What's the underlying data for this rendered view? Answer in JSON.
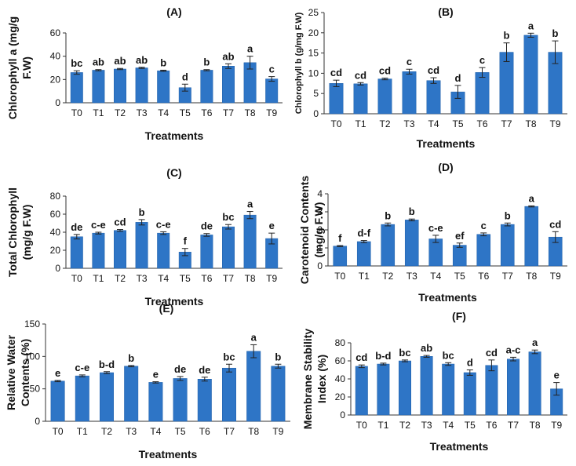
{
  "colors": {
    "bar": "#2e75c6",
    "bar_edge": "#1f5fa8",
    "axis": "#333333",
    "text": "#111111"
  },
  "chart_data": [
    {
      "panel": "(A)",
      "type": "bar",
      "ylabel_lines": [
        "Chlorophyll a (mg/g",
        "F.W)"
      ],
      "xlabel": "Treatments",
      "categories": [
        "T0",
        "T1",
        "T2",
        "T3",
        "T4",
        "T5",
        "T6",
        "T7",
        "T8",
        "T9"
      ],
      "values": [
        26,
        28,
        29,
        30,
        27.5,
        13,
        28,
        31.5,
        34.5,
        20.5
      ],
      "errors": [
        1.5,
        0.5,
        0.5,
        0.5,
        0.5,
        3,
        0.5,
        2,
        5.5,
        2
      ],
      "letters": [
        "bc",
        "ab",
        "ab",
        "ab",
        "b",
        "d",
        "b",
        "ab",
        "a",
        "c"
      ],
      "ylim": [
        0,
        60
      ],
      "yticks": [
        "0",
        "20",
        "40",
        "60"
      ]
    },
    {
      "panel": "(B)",
      "type": "bar",
      "ylabel_lines": [
        "Chlorophyll b (g/mg F.W)"
      ],
      "xlabel": "Treatments",
      "categories": [
        "T0",
        "T1",
        "T2",
        "T3",
        "T4",
        "T5",
        "T6",
        "T7",
        "T8",
        "T9"
      ],
      "values": [
        7.5,
        7.4,
        8.6,
        10.4,
        8.2,
        5.4,
        10.2,
        15.2,
        19.4,
        15.2
      ],
      "errors": [
        0.8,
        0.3,
        0.2,
        0.6,
        0.7,
        1.6,
        1.2,
        2.3,
        0.5,
        2.8
      ],
      "letters": [
        "cd",
        "cd",
        "cd",
        "c",
        "cd",
        "d",
        "c",
        "b",
        "a",
        "b"
      ],
      "ylim": [
        0,
        25
      ],
      "yticks": [
        "0",
        "5",
        "10",
        "15",
        "20",
        "25"
      ]
    },
    {
      "panel": "(C)",
      "type": "bar",
      "ylabel_lines": [
        "Total Chlorophyll",
        "(mg/g F.W)"
      ],
      "xlabel": "Treatments",
      "categories": [
        "T0",
        "T1",
        "T2",
        "T3",
        "T4",
        "T5",
        "T6",
        "T7",
        "T8",
        "T9"
      ],
      "values": [
        35,
        39,
        42,
        51,
        39,
        18,
        37,
        46,
        59,
        33
      ],
      "errors": [
        2.5,
        1,
        1,
        3,
        1.5,
        4,
        1.5,
        2.5,
        4,
        6
      ],
      "letters": [
        "de",
        "c-e",
        "cd",
        "b",
        "c-e",
        "f",
        "de",
        "bc",
        "a",
        "e"
      ],
      "ylim": [
        0,
        80
      ],
      "yticks": [
        "0",
        "20",
        "40",
        "60",
        "80"
      ]
    },
    {
      "panel": "(D)",
      "type": "bar",
      "ylabel_lines": [
        "Carotenoid Contents",
        "(mg/g F.W)"
      ],
      "xlabel": "Treatments",
      "categories": [
        "T0",
        "T1",
        "T2",
        "T3",
        "T4",
        "T5",
        "T6",
        "T7",
        "T8",
        "T9"
      ],
      "values": [
        1.1,
        1.35,
        2.3,
        2.55,
        1.5,
        1.15,
        1.75,
        2.3,
        3.3,
        1.6
      ],
      "errors": [
        0.03,
        0.06,
        0.08,
        0.05,
        0.2,
        0.12,
        0.08,
        0.08,
        0.03,
        0.3
      ],
      "letters": [
        "f",
        "d-f",
        "b",
        "b",
        "c-e",
        "ef",
        "c",
        "b",
        "a",
        "cd"
      ],
      "ylim": [
        0,
        4
      ],
      "yticks": [
        "0",
        "1",
        "2",
        "3",
        "4"
      ]
    },
    {
      "panel": "(E)",
      "type": "bar",
      "ylabel_lines": [
        "Relative Water",
        "Contents (%)"
      ],
      "xlabel": "Treatments",
      "categories": [
        "T0",
        "T1",
        "T2",
        "T3",
        "T4",
        "T5",
        "T6",
        "T7",
        "T8",
        "T9"
      ],
      "values": [
        62,
        70,
        75,
        85,
        60,
        66,
        65,
        82,
        108,
        85
      ],
      "errors": [
        1,
        1.5,
        1.5,
        1,
        1,
        3,
        3,
        6,
        10,
        3
      ],
      "letters": [
        "e",
        "c-e",
        "b-d",
        "b",
        "e",
        "de",
        "de",
        "bc",
        "a",
        "b"
      ],
      "ylim": [
        0,
        150
      ],
      "yticks": [
        "0",
        "50",
        "100",
        "150"
      ]
    },
    {
      "panel": "(F)",
      "type": "bar",
      "ylabel_lines": [
        "Membrane Stability",
        "Index (%)"
      ],
      "xlabel": "Treatments",
      "categories": [
        "T0",
        "T1",
        "T2",
        "T3",
        "T4",
        "T5",
        "T6",
        "T7",
        "T8",
        "T9"
      ],
      "values": [
        54,
        56.5,
        60,
        65,
        56.5,
        47,
        55,
        62,
        70,
        29
      ],
      "errors": [
        1.5,
        1,
        1,
        1,
        1.5,
        3,
        6,
        2,
        2,
        7
      ],
      "letters": [
        "cd",
        "b-d",
        "bc",
        "ab",
        "bc",
        "d",
        "cd",
        "a-c",
        "a",
        "e"
      ],
      "ylim": [
        0,
        80
      ],
      "yticks": [
        "0",
        "20",
        "40",
        "60",
        "80"
      ]
    }
  ]
}
